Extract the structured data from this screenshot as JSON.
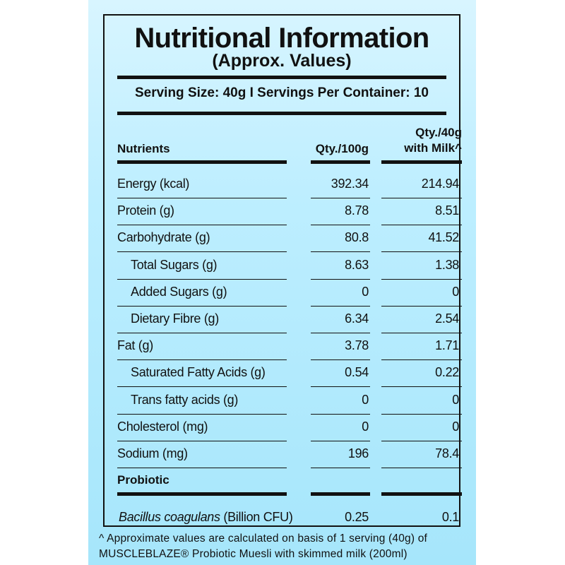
{
  "title": "Nutritional Information",
  "subtitle": "(Approx. Values)",
  "serving_line": "Serving Size: 40g  I  Servings Per Container: 10",
  "headers": {
    "nutrients": "Nutrients",
    "per100": "Qty./100g",
    "per40_line1": "Qty./40g",
    "per40_line2": "with Milk^"
  },
  "rows": [
    {
      "name": "Energy (kcal)",
      "per100": "392.34",
      "per40": "214.94",
      "indent": false
    },
    {
      "name": "Protein (g)",
      "per100": "8.78",
      "per40": "8.51",
      "indent": false
    },
    {
      "name": "Carbohydrate (g)",
      "per100": "80.8",
      "per40": "41.52",
      "indent": false
    },
    {
      "name": "Total Sugars (g)",
      "per100": "8.63",
      "per40": "1.38",
      "indent": true
    },
    {
      "name": "Added Sugars (g)",
      "per100": "0",
      "per40": "0",
      "indent": true
    },
    {
      "name": "Dietary Fibre (g)",
      "per100": "6.34",
      "per40": "2.54",
      "indent": true
    },
    {
      "name": "Fat (g)",
      "per100": "3.78",
      "per40": "1.71",
      "indent": false
    },
    {
      "name": "Saturated Fatty Acids (g)",
      "per100": "0.54",
      "per40": "0.22",
      "indent": true
    },
    {
      "name": "Trans fatty acids (g)",
      "per100": "0",
      "per40": "0",
      "indent": true
    },
    {
      "name": "Cholesterol (mg)",
      "per100": "0",
      "per40": "0",
      "indent": false
    },
    {
      "name": "Sodium (mg)",
      "per100": "196",
      "per40": "78.4",
      "indent": false
    }
  ],
  "probiotic_heading": "Probiotic",
  "probiotic_row": {
    "name_italic": "Bacillus coagulans",
    "name_rest": " (Billion CFU)",
    "per100": "0.25",
    "per40": "0.1"
  },
  "footnote": {
    "line1": "^ Approximate values are calculated on basis of 1 serving (40g) of",
    "line2": "MUSCLEBLAZE® Probiotic Muesli with skimmed milk (200ml)"
  }
}
